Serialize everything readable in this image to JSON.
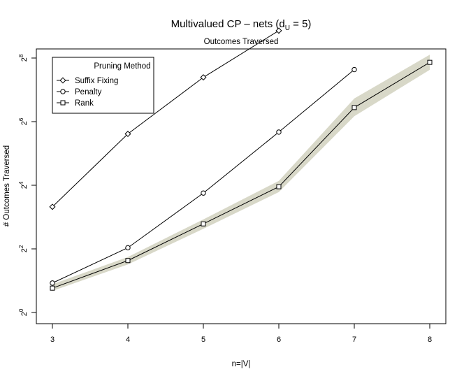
{
  "chart_data": {
    "type": "line",
    "title_main": "Multivalued CP – nets (d",
    "title_sub_U": "U",
    "title_tail": " = 5)",
    "subtitle": "Outcomes Traversed",
    "xlabel": "n=|V|",
    "ylabel": "# Outcomes Traversed",
    "y_scale": "log2",
    "xlim": [
      3,
      8
    ],
    "ylim_log2": [
      0,
      8
    ],
    "x_ticks": [
      "3",
      "4",
      "5",
      "6",
      "7",
      "8"
    ],
    "y_tick_base": "2",
    "y_tick_exponents": [
      "0",
      "2",
      "4",
      "6",
      "8"
    ],
    "legend": {
      "title": "Pruning Method",
      "position": "top-left",
      "entries": [
        {
          "label": "Suffix Fixing",
          "marker": "diamond"
        },
        {
          "label": "Penalty",
          "marker": "circle"
        },
        {
          "label": "Rank",
          "marker": "square"
        }
      ]
    },
    "band_color": "#d8d8c8",
    "series": [
      {
        "name": "Suffix Fixing",
        "marker": "diamond",
        "x": [
          3,
          4,
          5,
          6
        ],
        "y": [
          10,
          49,
          168,
          465
        ]
      },
      {
        "name": "Penalty",
        "marker": "circle",
        "x": [
          3,
          4,
          5,
          6,
          7
        ],
        "y": [
          1.9,
          4.1,
          13.5,
          51,
          199
        ]
      },
      {
        "name": "Rank",
        "marker": "square",
        "x": [
          3,
          4,
          5,
          6,
          7,
          8
        ],
        "y": [
          1.7,
          3.1,
          6.9,
          15.5,
          87,
          233
        ],
        "band_lower": [
          1.6,
          2.85,
          6.2,
          13.8,
          72,
          198
        ],
        "band_upper": [
          1.85,
          3.35,
          7.6,
          17.6,
          106,
          275
        ]
      }
    ]
  }
}
